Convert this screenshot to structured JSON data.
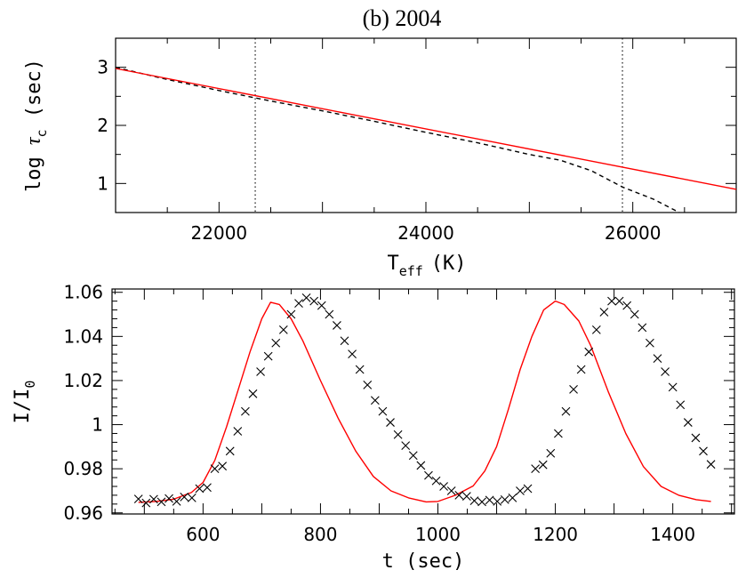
{
  "figure": {
    "title": "(b) 2004"
  },
  "chart_data": [
    {
      "type": "line",
      "xlabel": "T",
      "xlabel_sub": "eff",
      "xlabel_unit": "(K)",
      "ylabel_prefix": "log ",
      "ylabel_symbol": "τ",
      "ylabel_sub": "c",
      "ylabel_unit": " (sec)",
      "xlim": [
        21000,
        27000
      ],
      "ylim": [
        0.5,
        3.5
      ],
      "xticks": [
        22000,
        24000,
        26000
      ],
      "yticks": [
        1,
        2,
        3
      ],
      "vlines": [
        22350,
        25900
      ],
      "series": [
        {
          "style": "dashed",
          "color": "#000000",
          "x": [
            21000,
            21500,
            22000,
            22500,
            23000,
            23500,
            24000,
            24500,
            25000,
            25300,
            25600,
            25900,
            26200,
            26450
          ],
          "y": [
            3.0,
            2.79,
            2.6,
            2.42,
            2.25,
            2.07,
            1.88,
            1.7,
            1.5,
            1.4,
            1.22,
            0.94,
            0.73,
            0.5
          ]
        },
        {
          "style": "solid",
          "color": "#ff0000",
          "x": [
            21000,
            27000
          ],
          "y": [
            2.98,
            0.9
          ]
        }
      ]
    },
    {
      "type": "scatter",
      "xlabel": "t (sec)",
      "ylabel": "I/I",
      "ylabel_sub": "0",
      "xlim": [
        445,
        1505
      ],
      "ylim": [
        0.9595,
        1.0615
      ],
      "xticks": [
        600,
        800,
        1000,
        1200,
        1400
      ],
      "yticks": [
        0.96,
        0.98,
        1,
        1.02,
        1.04,
        1.06
      ],
      "ytick_labels": [
        "0.96",
        "0.98",
        "1",
        "1.02",
        "1.04",
        "1.06"
      ],
      "series": [
        {
          "style": "solid",
          "color": "#ff0000",
          "x": [
            490,
            520,
            550,
            580,
            600,
            620,
            640,
            660,
            680,
            700,
            715,
            730,
            750,
            770,
            800,
            830,
            860,
            890,
            920,
            950,
            980,
            1000,
            1030,
            1060,
            1080,
            1100,
            1120,
            1140,
            1160,
            1180,
            1200,
            1215,
            1240,
            1260,
            1290,
            1320,
            1350,
            1380,
            1410,
            1440,
            1465
          ],
          "y": [
            0.9648,
            0.9652,
            0.9662,
            0.9692,
            0.9738,
            0.9838,
            0.999,
            1.016,
            1.033,
            1.048,
            1.0555,
            1.0545,
            1.048,
            1.038,
            1.02,
            1.003,
            0.988,
            0.9765,
            0.97,
            0.9668,
            0.965,
            0.9652,
            0.968,
            0.9722,
            0.979,
            0.99,
            1.007,
            1.025,
            1.04,
            1.052,
            1.056,
            1.0545,
            1.047,
            1.036,
            1.015,
            0.996,
            0.981,
            0.972,
            0.968,
            0.966,
            0.9652
          ]
        },
        {
          "style": "marker-x",
          "color": "#000000",
          "x": [
            490,
            503,
            516,
            529,
            542,
            555,
            568,
            581,
            594,
            607,
            620,
            633,
            646,
            659,
            672,
            685,
            698,
            711,
            724,
            737,
            750,
            763,
            776,
            789,
            802,
            815,
            828,
            841,
            854,
            867,
            880,
            893,
            906,
            919,
            932,
            945,
            958,
            971,
            984,
            997,
            1010,
            1023,
            1036,
            1049,
            1062,
            1075,
            1088,
            1101,
            1114,
            1127,
            1140,
            1153,
            1166,
            1179,
            1192,
            1205,
            1218,
            1231,
            1244,
            1257,
            1270,
            1283,
            1296,
            1309,
            1322,
            1335,
            1348,
            1361,
            1374,
            1387,
            1400,
            1413,
            1426,
            1439,
            1452,
            1465
          ],
          "y": [
            0.9663,
            0.9645,
            0.9662,
            0.965,
            0.9665,
            0.9652,
            0.9672,
            0.9668,
            0.971,
            0.9715,
            0.98,
            0.9812,
            0.988,
            0.997,
            1.006,
            1.014,
            1.024,
            1.031,
            1.037,
            1.043,
            1.05,
            1.055,
            1.0575,
            1.056,
            1.054,
            1.05,
            1.045,
            1.038,
            1.032,
            1.025,
            1.018,
            1.011,
            1.006,
            1.001,
            0.9955,
            0.9905,
            0.986,
            0.9815,
            0.977,
            0.9745,
            0.972,
            0.97,
            0.968,
            0.9675,
            0.9655,
            0.965,
            0.9658,
            0.9652,
            0.966,
            0.9668,
            0.97,
            0.971,
            0.98,
            0.9818,
            0.987,
            0.996,
            1.006,
            1.016,
            1.025,
            1.033,
            1.043,
            1.051,
            1.056,
            1.056,
            1.054,
            1.05,
            1.044,
            1.037,
            1.03,
            1.024,
            1.017,
            1.009,
            1.001,
            0.994,
            0.988,
            0.982
          ]
        }
      ]
    }
  ]
}
